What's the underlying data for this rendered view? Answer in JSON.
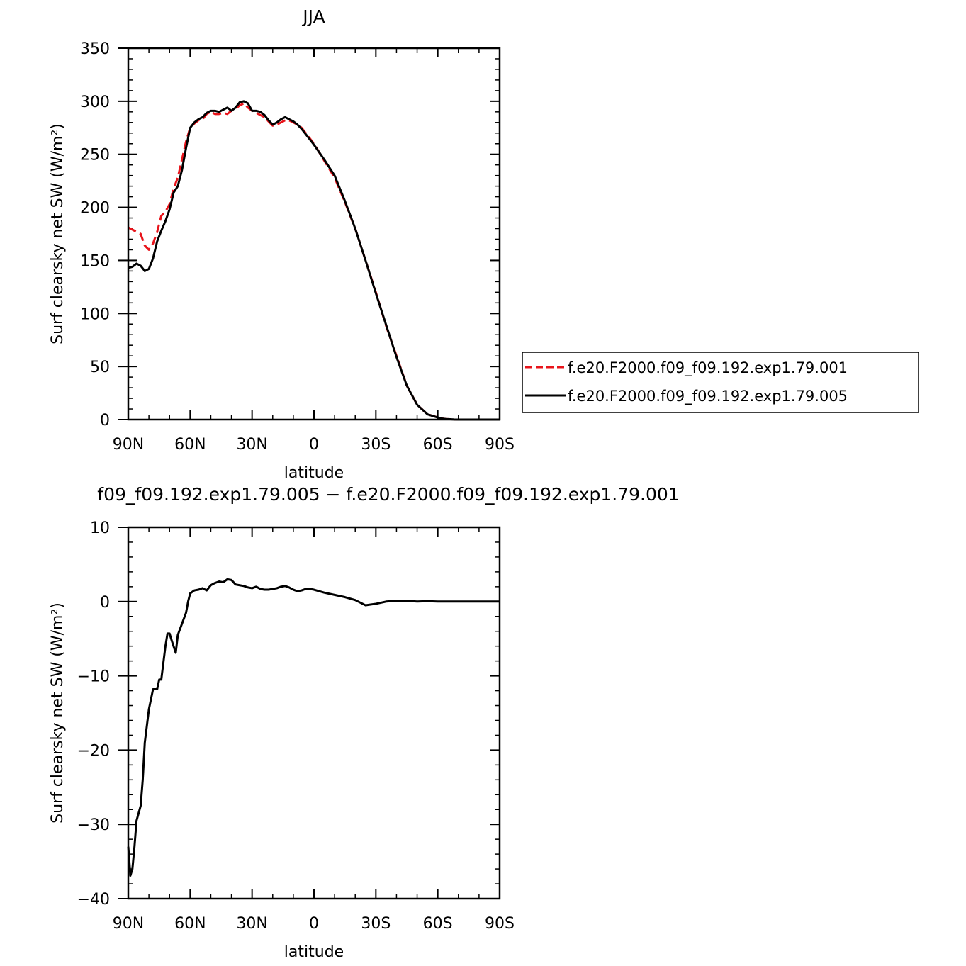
{
  "chart_data": [
    {
      "type": "line",
      "title": "JJA",
      "xlabel": "latitude",
      "ylabel": "Surf clearsky net SW (W/m²)",
      "xlim": [
        90,
        -90
      ],
      "ylim": [
        0,
        350
      ],
      "x_ticks": [
        90,
        60,
        30,
        0,
        -30,
        -60,
        -90
      ],
      "x_tick_labels": [
        "90N",
        "60N",
        "30N",
        "0",
        "30S",
        "60S",
        "90S"
      ],
      "y_ticks": [
        0,
        50,
        100,
        150,
        200,
        250,
        300,
        350
      ],
      "y_tick_labels": [
        "0",
        "50",
        "100",
        "150",
        "200",
        "250",
        "300",
        "350"
      ],
      "legend_position": "right",
      "series": [
        {
          "name": "f.e20.F2000.f09_f09.192.exp1.79.001",
          "color": "#e8141b",
          "dash": "dashed",
          "x": [
            90,
            87,
            84,
            82,
            80,
            78,
            76,
            74,
            72,
            70,
            68,
            66,
            64,
            62,
            60,
            58,
            56,
            54,
            52,
            50,
            48,
            46,
            44,
            42,
            40,
            38,
            36,
            34,
            32,
            30,
            28,
            26,
            24,
            22,
            20,
            18,
            16,
            14,
            12,
            10,
            8,
            6,
            4,
            2,
            0,
            -5,
            -10,
            -15,
            -20,
            -25,
            -30,
            -35,
            -40,
            -45,
            -50,
            -55,
            -60,
            -62,
            -64,
            -66,
            -68,
            -70,
            -75,
            -80,
            -85,
            -90
          ],
          "y": [
            181,
            178,
            175,
            164,
            160,
            166,
            177,
            192,
            196,
            203,
            218,
            228,
            245,
            262,
            275,
            279,
            282,
            283,
            288,
            290,
            288,
            288,
            289,
            288,
            291,
            293,
            296,
            298,
            294,
            291,
            289,
            287,
            285,
            281,
            277,
            278,
            280,
            282,
            282,
            280,
            278,
            275,
            270,
            265,
            260,
            244,
            228,
            205,
            180,
            150,
            120,
            88,
            60,
            32,
            14,
            5,
            2,
            1,
            0.5,
            0.3,
            0.1,
            0,
            0,
            0,
            0,
            0
          ]
        },
        {
          "name": "f.e20.F2000.f09_f09.192.exp1.79.005",
          "color": "#000000",
          "dash": "solid",
          "x": [
            90,
            88,
            86,
            84,
            82,
            80,
            78,
            76,
            74,
            72,
            70,
            68,
            66,
            64,
            62,
            60,
            58,
            56,
            54,
            52,
            50,
            48,
            46,
            44,
            42,
            40,
            38,
            36,
            34,
            32,
            30,
            28,
            26,
            24,
            22,
            20,
            18,
            16,
            14,
            12,
            10,
            8,
            6,
            4,
            2,
            0,
            -5,
            -10,
            -15,
            -20,
            -25,
            -30,
            -35,
            -40,
            -45,
            -50,
            -55,
            -60,
            -62,
            -64,
            -66,
            -68,
            -70,
            -75,
            -80,
            -85,
            -90
          ],
          "y": [
            143,
            144,
            147,
            145,
            140,
            142,
            152,
            168,
            178,
            187,
            198,
            214,
            220,
            235,
            256,
            275,
            280,
            283,
            285,
            289,
            291,
            291,
            290,
            292,
            294,
            291,
            294,
            299,
            300,
            298,
            291,
            291,
            290,
            287,
            282,
            278,
            280,
            283,
            285,
            283,
            281,
            278,
            274,
            269,
            264,
            259,
            245,
            230,
            206,
            180,
            150,
            119,
            89,
            59,
            32,
            14,
            5,
            2,
            1,
            0.5,
            0.3,
            0.1,
            0,
            0,
            0,
            0,
            0
          ]
        }
      ]
    },
    {
      "type": "line",
      "title": "f09_f09.192.exp1.79.005 − f.e20.F2000.f09_f09.192.exp1.79.001",
      "xlabel": "latitude",
      "ylabel": "Surf clearsky net SW (W/m²)",
      "xlim": [
        90,
        -90
      ],
      "ylim": [
        -40,
        10
      ],
      "x_ticks": [
        90,
        60,
        30,
        0,
        -30,
        -60,
        -90
      ],
      "x_tick_labels": [
        "90N",
        "60N",
        "30N",
        "0",
        "30S",
        "60S",
        "90S"
      ],
      "y_ticks": [
        -40,
        -30,
        -20,
        -10,
        0,
        10
      ],
      "y_tick_labels": [
        "−40",
        "−30",
        "−20",
        "−10",
        "0",
        "10"
      ],
      "series": [
        {
          "color": "#000000",
          "dash": "solid",
          "x": [
            90,
            89,
            88,
            87,
            86,
            84,
            83,
            82,
            80,
            78,
            76,
            75,
            74,
            72,
            71,
            70,
            69,
            67,
            66,
            64,
            62,
            61,
            60,
            58,
            56,
            54,
            52,
            50,
            48,
            46,
            44,
            42,
            40,
            38,
            36,
            34,
            32,
            30,
            28,
            26,
            24,
            22,
            20,
            18,
            16,
            14,
            12,
            10,
            8,
            6,
            4,
            2,
            0,
            -5,
            -10,
            -15,
            -20,
            -25,
            -30,
            -35,
            -40,
            -45,
            -50,
            -55,
            -60,
            -65,
            -70,
            -75,
            -80,
            -85,
            -90
          ],
          "y": [
            -33,
            -36.9,
            -36,
            -33,
            -29.5,
            -27.5,
            -24,
            -19,
            -14.5,
            -11.8,
            -11.8,
            -10.5,
            -10.5,
            -6,
            -4.3,
            -4.3,
            -5.2,
            -6.9,
            -4.5,
            -3,
            -1.5,
            0,
            1.1,
            1.5,
            1.6,
            1.8,
            1.5,
            2.2,
            2.5,
            2.7,
            2.6,
            3,
            2.9,
            2.3,
            2.2,
            2.1,
            1.9,
            1.8,
            2.0,
            1.7,
            1.6,
            1.6,
            1.7,
            1.8,
            2.0,
            2.1,
            1.9,
            1.6,
            1.4,
            1.5,
            1.7,
            1.7,
            1.6,
            1.2,
            0.9,
            0.6,
            0.2,
            -0.5,
            -0.3,
            0,
            0.1,
            0.1,
            0,
            0.05,
            0,
            0,
            0,
            0,
            0,
            0,
            0
          ]
        }
      ]
    }
  ]
}
